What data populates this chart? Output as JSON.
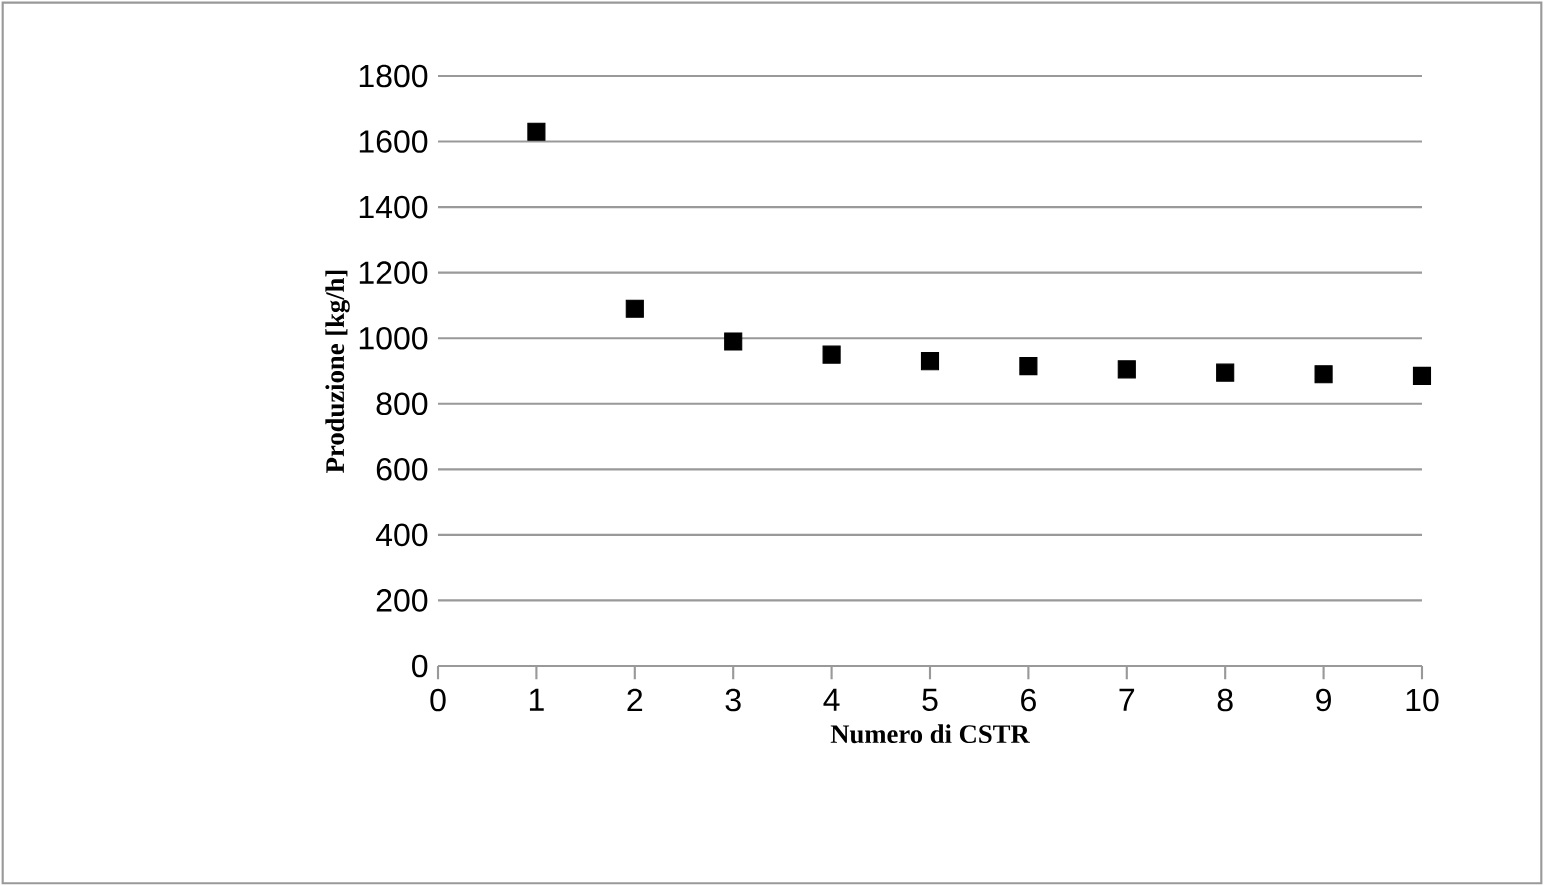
{
  "chart_data": {
    "type": "scatter",
    "xlabel": "Numero di CSTR",
    "ylabel": "Produzione [kg/h]",
    "x": [
      1,
      2,
      3,
      4,
      5,
      6,
      7,
      8,
      9,
      10
    ],
    "series": [
      {
        "color": "#000000",
        "values": [
          1630,
          1090,
          990,
          950,
          930,
          915,
          905,
          895,
          890,
          885
        ]
      }
    ],
    "xlim": [
      0,
      10
    ],
    "xticks": [
      0,
      1,
      2,
      3,
      4,
      5,
      6,
      7,
      8,
      9,
      10
    ],
    "ylim": [
      0,
      1800
    ],
    "yticks": [
      0,
      200,
      400,
      600,
      800,
      1000,
      1200,
      1400,
      1600,
      1800
    ],
    "grid": "y",
    "marker": "square"
  }
}
